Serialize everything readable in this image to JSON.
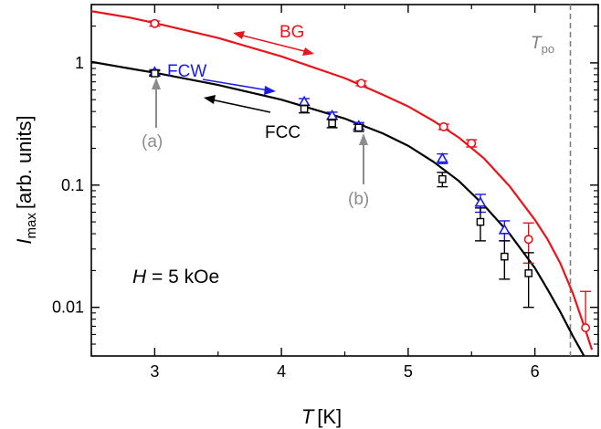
{
  "chart_data": {
    "type": "scatter",
    "x_label": {
      "symbol": "T",
      "unit": "[K]"
    },
    "y_label": {
      "symbol": "I",
      "subscript": "max",
      "unit": "[arb. units]"
    },
    "x_range": [
      2.5,
      6.5
    ],
    "y_range": [
      0.004,
      3
    ],
    "y_scale": "log",
    "x_ticks": [
      {
        "value": 3,
        "label": "3"
      },
      {
        "value": 4,
        "label": "4"
      },
      {
        "value": 5,
        "label": "5"
      },
      {
        "value": 6,
        "label": "6"
      }
    ],
    "y_ticks": [
      {
        "value": 1,
        "label": "1"
      },
      {
        "value": 0.1,
        "label": "0.1"
      },
      {
        "value": 0.01,
        "label": "0.01"
      }
    ],
    "series": [
      {
        "name": "BG",
        "color": "#e8141b",
        "marker": "circle",
        "points": [
          {
            "x": 3.0,
            "y": 2.1,
            "err_up": 0.1,
            "err_down": 0.1
          },
          {
            "x": 4.63,
            "y": 0.68,
            "err_up": 0.03,
            "err_down": 0.03
          },
          {
            "x": 5.28,
            "y": 0.3,
            "err_up": 0.015,
            "err_down": 0.015
          },
          {
            "x": 5.5,
            "y": 0.22,
            "err_up": 0.015,
            "err_down": 0.015
          },
          {
            "x": 5.95,
            "y": 0.036,
            "err_up": 0.013,
            "err_down": 0.013
          },
          {
            "x": 6.4,
            "y": 0.0068,
            "err_up": 0.0067,
            "err_down": 0
          }
        ],
        "fit": [
          [
            2.5,
            2.65
          ],
          [
            2.8,
            2.35
          ],
          [
            3.0,
            2.12
          ],
          [
            3.5,
            1.6
          ],
          [
            4.0,
            1.13
          ],
          [
            4.5,
            0.75
          ],
          [
            4.8,
            0.55
          ],
          [
            5.0,
            0.44
          ],
          [
            5.2,
            0.335
          ],
          [
            5.4,
            0.245
          ],
          [
            5.6,
            0.165
          ],
          [
            5.8,
            0.098
          ],
          [
            6.0,
            0.052
          ],
          [
            6.1,
            0.036
          ],
          [
            6.2,
            0.023
          ],
          [
            6.3,
            0.013
          ],
          [
            6.4,
            0.0065
          ],
          [
            6.45,
            0.0045
          ]
        ]
      },
      {
        "name": "FCW",
        "color": "#1b1be6",
        "marker": "triangle",
        "points": [
          {
            "x": 3.0,
            "y": 0.84,
            "err_up": 0.04,
            "err_down": 0.04
          },
          {
            "x": 4.18,
            "y": 0.48,
            "err_up": 0.03,
            "err_down": 0.03
          },
          {
            "x": 4.4,
            "y": 0.37,
            "err_up": 0.025,
            "err_down": 0.025
          },
          {
            "x": 4.61,
            "y": 0.305,
            "err_up": 0.02,
            "err_down": 0.02
          },
          {
            "x": 5.27,
            "y": 0.165,
            "err_up": 0.015,
            "err_down": 0.015
          },
          {
            "x": 5.57,
            "y": 0.072,
            "err_up": 0.012,
            "err_down": 0.012
          },
          {
            "x": 5.76,
            "y": 0.043,
            "err_up": 0.008,
            "err_down": 0.008
          }
        ]
      },
      {
        "name": "FCC",
        "color": "#000000",
        "marker": "square",
        "points": [
          {
            "x": 3.0,
            "y": 0.82,
            "err_up": 0.04,
            "err_down": 0.04
          },
          {
            "x": 4.18,
            "y": 0.42,
            "err_up": 0.03,
            "err_down": 0.03
          },
          {
            "x": 4.4,
            "y": 0.32,
            "err_up": 0.025,
            "err_down": 0.025
          },
          {
            "x": 4.61,
            "y": 0.295,
            "err_up": 0.02,
            "err_down": 0.02
          },
          {
            "x": 5.27,
            "y": 0.112,
            "err_up": 0.015,
            "err_down": 0.015
          },
          {
            "x": 5.57,
            "y": 0.05,
            "err_up": 0.015,
            "err_down": 0.015
          },
          {
            "x": 5.76,
            "y": 0.026,
            "err_up": 0.009,
            "err_down": 0.009
          },
          {
            "x": 5.95,
            "y": 0.019,
            "err_up": 0.009,
            "err_down": 0.009
          }
        ],
        "fit": [
          [
            2.5,
            1.02
          ],
          [
            2.8,
            0.9
          ],
          [
            3.0,
            0.83
          ],
          [
            3.5,
            0.66
          ],
          [
            4.0,
            0.5
          ],
          [
            4.5,
            0.35
          ],
          [
            4.8,
            0.265
          ],
          [
            5.0,
            0.21
          ],
          [
            5.2,
            0.155
          ],
          [
            5.4,
            0.108
          ],
          [
            5.6,
            0.068
          ],
          [
            5.8,
            0.04
          ],
          [
            6.0,
            0.021
          ],
          [
            6.1,
            0.014
          ],
          [
            6.2,
            0.0092
          ],
          [
            6.3,
            0.0058
          ],
          [
            6.4,
            0.0038
          ]
        ]
      }
    ],
    "vline": {
      "x": 6.28,
      "color": "#7f7f7f",
      "label_symbol": "T",
      "label_sub": "po"
    },
    "annotations": {
      "bg_label": "BG",
      "fcw_label": "FCW",
      "fcc_label": "FCC",
      "field_symbol": "H",
      "field_value": " = 5 kOe",
      "point_a": "(a)",
      "point_b": "(b)"
    }
  }
}
